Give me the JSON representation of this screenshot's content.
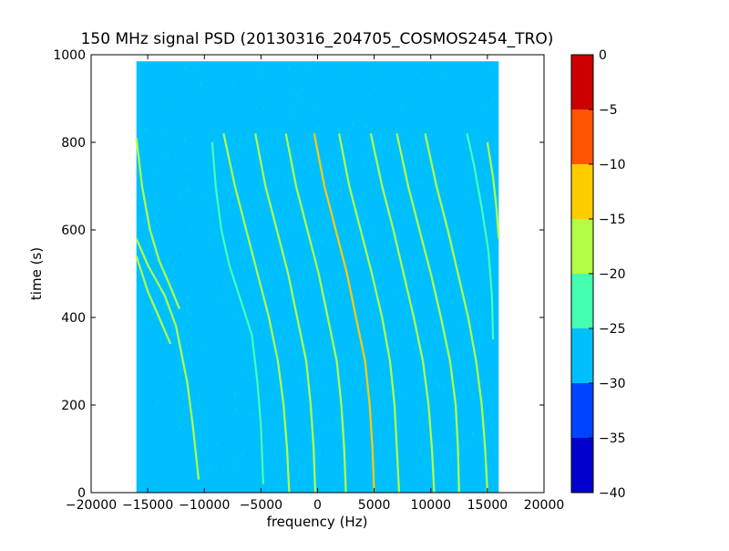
{
  "chart_data": {
    "type": "heatmap",
    "title": "150 MHz signal PSD (20130316_204705_COSMOS2454_TRO)",
    "xlabel": "frequency (Hz)",
    "ylabel": "time (s)",
    "xlim": [
      -20000,
      20000
    ],
    "ylim": [
      0,
      1000
    ],
    "xticks": [
      -20000,
      -15000,
      -10000,
      -5000,
      0,
      5000,
      10000,
      15000,
      20000
    ],
    "xtick_labels": [
      "−20000",
      "−15000",
      "−10000",
      "−5000",
      "0",
      "5000",
      "10000",
      "15000",
      "20000"
    ],
    "yticks": [
      0,
      200,
      400,
      600,
      800,
      1000
    ],
    "ytick_labels": [
      "0",
      "200",
      "400",
      "600",
      "800",
      "1000"
    ],
    "data_extent": {
      "x": [
        -16000,
        16000
      ],
      "y": [
        0,
        985
      ]
    },
    "background_level": -27.5,
    "colorbar": {
      "range": [
        -40,
        0
      ],
      "ticks": [
        0,
        -5,
        -10,
        -15,
        -20,
        -25,
        -30,
        -35,
        -40
      ],
      "tick_labels": [
        "0",
        "−5",
        "−10",
        "−15",
        "−20",
        "−25",
        "−30",
        "−35",
        "−40"
      ],
      "bins": [
        {
          "min": -40,
          "max": -35,
          "color": "#0000cc"
        },
        {
          "min": -35,
          "max": -30,
          "color": "#0044ff"
        },
        {
          "min": -30,
          "max": -25,
          "color": "#00bfff"
        },
        {
          "min": -25,
          "max": -20,
          "color": "#44ffb0"
        },
        {
          "min": -20,
          "max": -15,
          "color": "#b0ff44"
        },
        {
          "min": -15,
          "max": -10,
          "color": "#ffcc00"
        },
        {
          "min": -10,
          "max": -5,
          "color": "#ff5500"
        },
        {
          "min": -5,
          "max": 0,
          "color": "#cc0000"
        }
      ]
    },
    "traces": [
      {
        "level": -12,
        "points": [
          [
            5000,
            0
          ],
          [
            4850,
            100
          ],
          [
            4600,
            200
          ],
          [
            4200,
            300
          ],
          [
            3400,
            400
          ],
          [
            2600,
            500
          ],
          [
            1600,
            600
          ],
          [
            600,
            700
          ],
          [
            -300,
            820
          ]
        ]
      },
      {
        "level": -18,
        "points": [
          [
            2500,
            0
          ],
          [
            2350,
            100
          ],
          [
            2100,
            200
          ],
          [
            1700,
            300
          ],
          [
            900,
            400
          ],
          [
            100,
            500
          ],
          [
            -900,
            600
          ],
          [
            -1900,
            700
          ],
          [
            -2800,
            820
          ]
        ]
      },
      {
        "level": -18,
        "points": [
          [
            -200,
            0
          ],
          [
            -350,
            100
          ],
          [
            -600,
            200
          ],
          [
            -1000,
            300
          ],
          [
            -1800,
            400
          ],
          [
            -2600,
            500
          ],
          [
            -3600,
            600
          ],
          [
            -4600,
            700
          ],
          [
            -5500,
            820
          ]
        ]
      },
      {
        "level": -20,
        "points": [
          [
            -2500,
            0
          ],
          [
            -2700,
            100
          ],
          [
            -3000,
            200
          ],
          [
            -3500,
            300
          ],
          [
            -4300,
            400
          ],
          [
            -5300,
            500
          ],
          [
            -6300,
            600
          ],
          [
            -7300,
            700
          ],
          [
            -8300,
            820
          ]
        ]
      },
      {
        "level": -18,
        "points": [
          [
            7200,
            0
          ],
          [
            7000,
            100
          ],
          [
            6800,
            200
          ],
          [
            6400,
            300
          ],
          [
            5700,
            400
          ],
          [
            4800,
            500
          ],
          [
            3800,
            600
          ],
          [
            2800,
            700
          ],
          [
            1900,
            820
          ]
        ]
      },
      {
        "level": -18,
        "points": [
          [
            10300,
            0
          ],
          [
            10100,
            100
          ],
          [
            9800,
            200
          ],
          [
            9300,
            300
          ],
          [
            8500,
            400
          ],
          [
            7600,
            500
          ],
          [
            6700,
            600
          ],
          [
            5700,
            700
          ],
          [
            4700,
            820
          ]
        ]
      },
      {
        "level": -20,
        "points": [
          [
            12500,
            0
          ],
          [
            12400,
            100
          ],
          [
            12200,
            200
          ],
          [
            11700,
            300
          ],
          [
            10900,
            400
          ],
          [
            10000,
            500
          ],
          [
            9000,
            600
          ],
          [
            8000,
            700
          ],
          [
            7000,
            820
          ]
        ]
      },
      {
        "level": -20,
        "points": [
          [
            15000,
            0
          ],
          [
            14800,
            100
          ],
          [
            14500,
            200
          ],
          [
            14000,
            300
          ],
          [
            13300,
            400
          ],
          [
            12400,
            500
          ],
          [
            11500,
            600
          ],
          [
            10500,
            700
          ],
          [
            9500,
            820
          ]
        ]
      },
      {
        "level": -22,
        "points": [
          [
            15500,
            350
          ],
          [
            15400,
            450
          ],
          [
            15100,
            550
          ],
          [
            14500,
            650
          ],
          [
            13800,
            750
          ],
          [
            13200,
            820
          ]
        ]
      },
      {
        "level": -18,
        "points": [
          [
            -16000,
            580
          ],
          [
            -15000,
            520
          ],
          [
            -13500,
            450
          ],
          [
            -12500,
            380
          ],
          [
            -11500,
            250
          ],
          [
            -11000,
            150
          ],
          [
            -10500,
            30
          ]
        ]
      },
      {
        "level": -20,
        "points": [
          [
            -16000,
            540
          ],
          [
            -15000,
            460
          ],
          [
            -14000,
            400
          ],
          [
            -13000,
            340
          ]
        ]
      },
      {
        "level": -20,
        "points": [
          [
            -16000,
            810
          ],
          [
            -15500,
            700
          ],
          [
            -14800,
            600
          ],
          [
            -14000,
            530
          ],
          [
            -13000,
            470
          ],
          [
            -12200,
            420
          ]
        ]
      },
      {
        "level": -22,
        "points": [
          [
            -9300,
            800
          ],
          [
            -9000,
            700
          ],
          [
            -8500,
            600
          ],
          [
            -7800,
            520
          ],
          [
            -6800,
            440
          ],
          [
            -5800,
            360
          ],
          [
            -5300,
            250
          ],
          [
            -5000,
            150
          ],
          [
            -4800,
            20
          ]
        ]
      },
      {
        "level": -18,
        "points": [
          [
            16000,
            580
          ],
          [
            15800,
            650
          ],
          [
            15500,
            720
          ],
          [
            15000,
            800
          ]
        ]
      }
    ]
  }
}
